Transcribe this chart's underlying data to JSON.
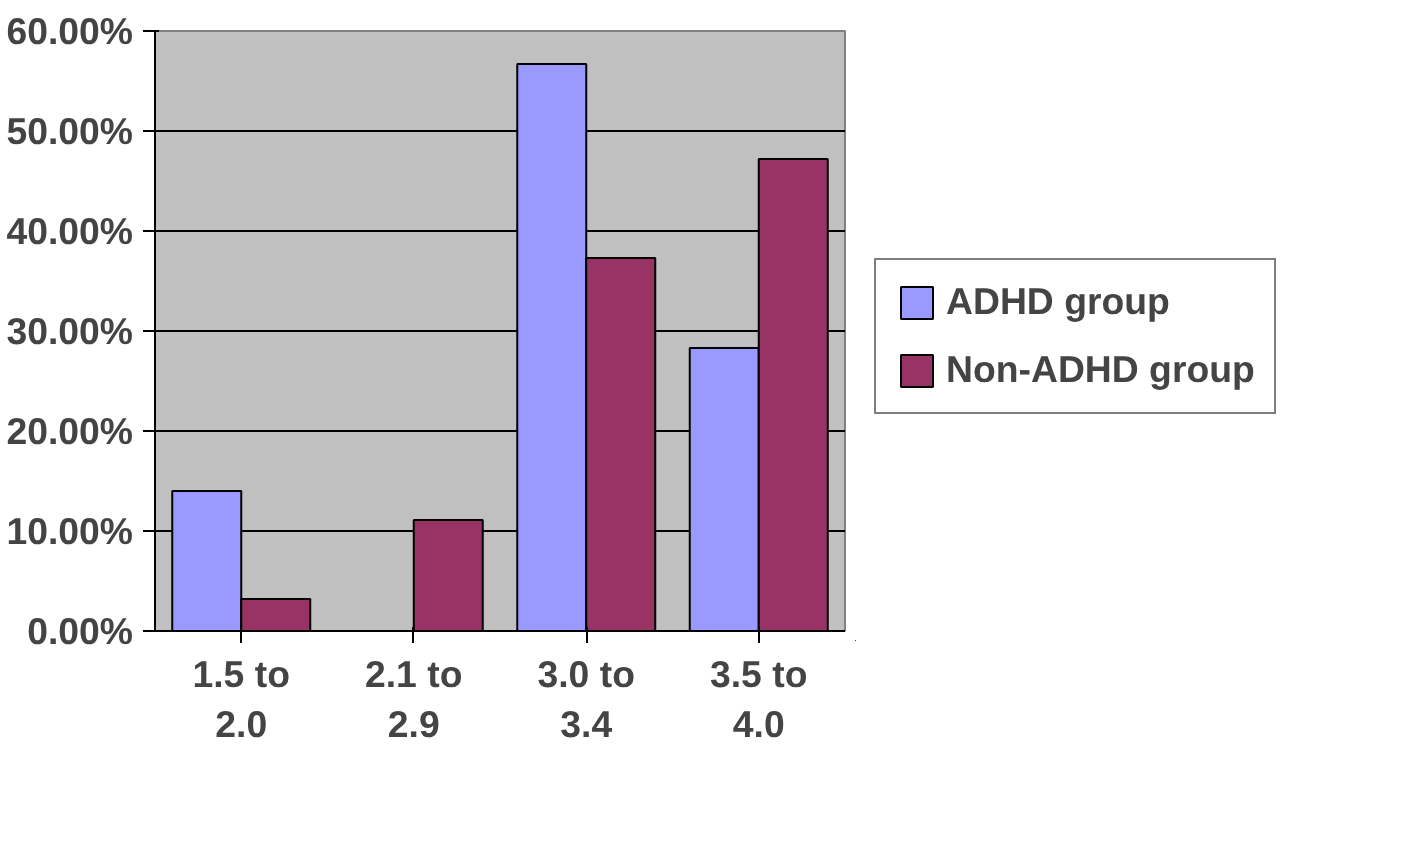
{
  "chart_data": {
    "type": "bar",
    "categories": [
      "1.5 to 2.0",
      "2.1 to 2.9",
      "3.0 to 3.4",
      "3.5 to 4.0"
    ],
    "series": [
      {
        "name": "ADHD group",
        "color": "#9999ff",
        "values": [
          14,
          null,
          56.7,
          28.3
        ]
      },
      {
        "name": "Non-ADHD group",
        "color": "#993366",
        "values": [
          3.2,
          11.1,
          37.3,
          47.2
        ]
      }
    ],
    "ylim": [
      0,
      60
    ],
    "yticks": [
      {
        "value": 0,
        "label": "0.00%"
      },
      {
        "value": 10,
        "label": "10.00%"
      },
      {
        "value": 20,
        "label": "20.00%"
      },
      {
        "value": 30,
        "label": "30.00%"
      },
      {
        "value": 40,
        "label": "40.00%"
      },
      {
        "value": 50,
        "label": "50.00%"
      },
      {
        "value": 60,
        "label": "60.00%"
      }
    ],
    "grid": "y",
    "legend": "right"
  }
}
